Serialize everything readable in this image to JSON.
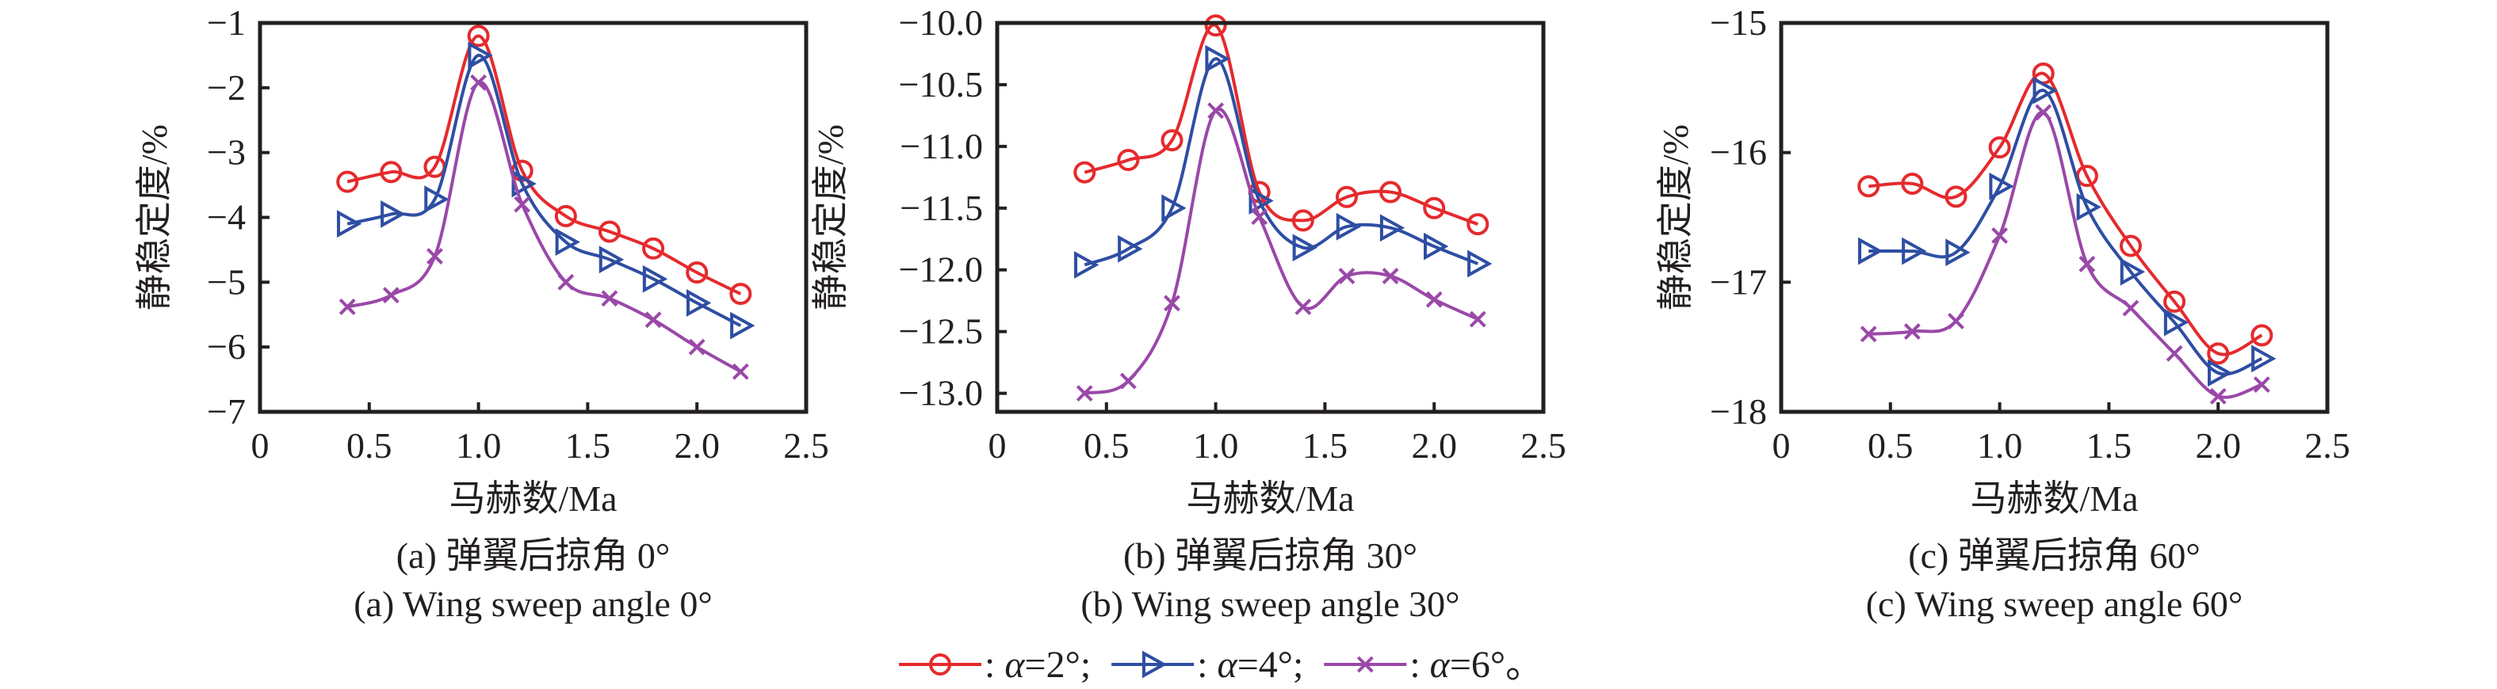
{
  "figure": {
    "legend": {
      "items": [
        {
          "series": "a2",
          "prefix": " : ",
          "symbol": "α",
          "suffix": "=2°;",
          "color": "#e52a2d",
          "marker": "circle"
        },
        {
          "series": "a4",
          "prefix": " : ",
          "symbol": "α",
          "suffix": "=4°;",
          "color": "#2e4ea3",
          "marker": "triangle-right"
        },
        {
          "series": "a6",
          "prefix": " : ",
          "symbol": "α",
          "suffix": "=6°。",
          "color": "#9a48a8",
          "marker": "x"
        }
      ]
    }
  },
  "chart_data": [
    {
      "type": "line",
      "id": "a",
      "caption_cn": "(a) 弹翼后掠角 0°",
      "caption_en": "(a) Wing sweep angle 0°",
      "xlabel": "马赫数/Ma",
      "ylabel": "静稳定度/%",
      "xlim": [
        0,
        2.5
      ],
      "ylim": [
        -7,
        -1
      ],
      "xticks": [
        0,
        0.5,
        1.0,
        1.5,
        2.0,
        2.5
      ],
      "xtick_labels": [
        "0",
        "0.5",
        "1.0",
        "1.5",
        "2.0",
        "2.5"
      ],
      "yticks": [
        -1,
        -2,
        -3,
        -4,
        -5,
        -6,
        -7
      ],
      "ytick_labels": [
        "−1",
        "−2",
        "−3",
        "−4",
        "−5",
        "−6",
        "−7"
      ],
      "grid": false,
      "x": [
        0.4,
        0.6,
        0.8,
        1.0,
        1.2,
        1.4,
        1.6,
        1.8,
        2.0,
        2.2
      ],
      "series": [
        {
          "name": "α=2°",
          "color": "#e52a2d",
          "marker": "circle",
          "values": [
            -3.45,
            -3.3,
            -3.22,
            -1.2,
            -3.28,
            -3.98,
            -4.22,
            -4.48,
            -4.85,
            -5.18
          ]
        },
        {
          "name": "α=4°",
          "color": "#2e4ea3",
          "marker": "triangle-right",
          "values": [
            -4.1,
            -3.95,
            -3.72,
            -1.5,
            -3.48,
            -4.38,
            -4.65,
            -4.95,
            -5.32,
            -5.67
          ]
        },
        {
          "name": "α=6°",
          "color": "#9a48a8",
          "marker": "x",
          "values": [
            -5.38,
            -5.2,
            -4.6,
            -1.92,
            -3.8,
            -5.0,
            -5.25,
            -5.58,
            -6.0,
            -6.38
          ]
        }
      ]
    },
    {
      "type": "line",
      "id": "b",
      "caption_cn": "(b) 弹翼后掠角 30°",
      "caption_en": "(b) Wing sweep angle 30°",
      "xlabel": "马赫数/Ma",
      "ylabel": "静稳定度/%",
      "xlim": [
        0,
        2.5
      ],
      "ylim": [
        -13.15,
        -10.0
      ],
      "xticks": [
        0,
        0.5,
        1.0,
        1.5,
        2.0,
        2.5
      ],
      "xtick_labels": [
        "0",
        "0.5",
        "1.0",
        "1.5",
        "2.0",
        "2.5"
      ],
      "yticks": [
        -10.0,
        -10.5,
        -11.0,
        -11.5,
        -12.0,
        -12.5,
        -13.0
      ],
      "ytick_labels": [
        "−10.0",
        "−10.5",
        "−11.0",
        "−11.5",
        "−12.0",
        "−12.5",
        "−13.0"
      ],
      "grid": false,
      "x": [
        0.4,
        0.6,
        0.8,
        1.0,
        1.2,
        1.4,
        1.6,
        1.8,
        2.0,
        2.2
      ],
      "series": [
        {
          "name": "α=2°",
          "color": "#e52a2d",
          "marker": "circle",
          "values": [
            -11.21,
            -11.11,
            -10.95,
            -10.02,
            -11.37,
            -11.6,
            -11.41,
            -11.37,
            -11.5,
            -11.63
          ]
        },
        {
          "name": "α=4°",
          "color": "#2e4ea3",
          "marker": "triangle-right",
          "values": [
            -11.96,
            -11.83,
            -11.5,
            -10.29,
            -11.44,
            -11.82,
            -11.65,
            -11.66,
            -11.81,
            -11.95
          ]
        },
        {
          "name": "α=6°",
          "color": "#9a48a8",
          "marker": "x",
          "values": [
            -13.0,
            -12.9,
            -12.27,
            -10.71,
            -11.57,
            -12.3,
            -12.05,
            -12.05,
            -12.24,
            -12.4
          ]
        }
      ]
    },
    {
      "type": "line",
      "id": "c",
      "caption_cn": "(c) 弹翼后掠角 60°",
      "caption_en": "(c) Wing sweep angle 60°",
      "xlabel": "马赫数/Ma",
      "ylabel": "静稳定度/%",
      "xlim": [
        0,
        2.5
      ],
      "ylim": [
        -18,
        -15
      ],
      "xticks": [
        0,
        0.5,
        1.0,
        1.5,
        2.0,
        2.5
      ],
      "xtick_labels": [
        "0",
        "0.5",
        "1.0",
        "1.5",
        "2.0",
        "2.5"
      ],
      "yticks": [
        -15,
        -16,
        -17,
        -18
      ],
      "ytick_labels": [
        "−15",
        "−16",
        "−17",
        "−18"
      ],
      "grid": false,
      "x": [
        0.4,
        0.6,
        0.8,
        1.0,
        1.2,
        1.4,
        1.6,
        1.8,
        2.0,
        2.2
      ],
      "series": [
        {
          "name": "α=2°",
          "color": "#e52a2d",
          "marker": "circle",
          "values": [
            -16.26,
            -16.24,
            -16.34,
            -15.96,
            -15.39,
            -16.18,
            -16.72,
            -17.15,
            -17.55,
            -17.41
          ]
        },
        {
          "name": "α=4°",
          "color": "#2e4ea3",
          "marker": "triangle-right",
          "values": [
            -16.76,
            -16.76,
            -16.77,
            -16.26,
            -15.52,
            -16.42,
            -16.92,
            -17.31,
            -17.7,
            -17.59
          ]
        },
        {
          "name": "α=6°",
          "color": "#9a48a8",
          "marker": "x",
          "values": [
            -17.4,
            -17.38,
            -17.3,
            -16.64,
            -15.69,
            -16.86,
            -17.2,
            -17.55,
            -17.88,
            -17.79
          ]
        }
      ]
    }
  ]
}
